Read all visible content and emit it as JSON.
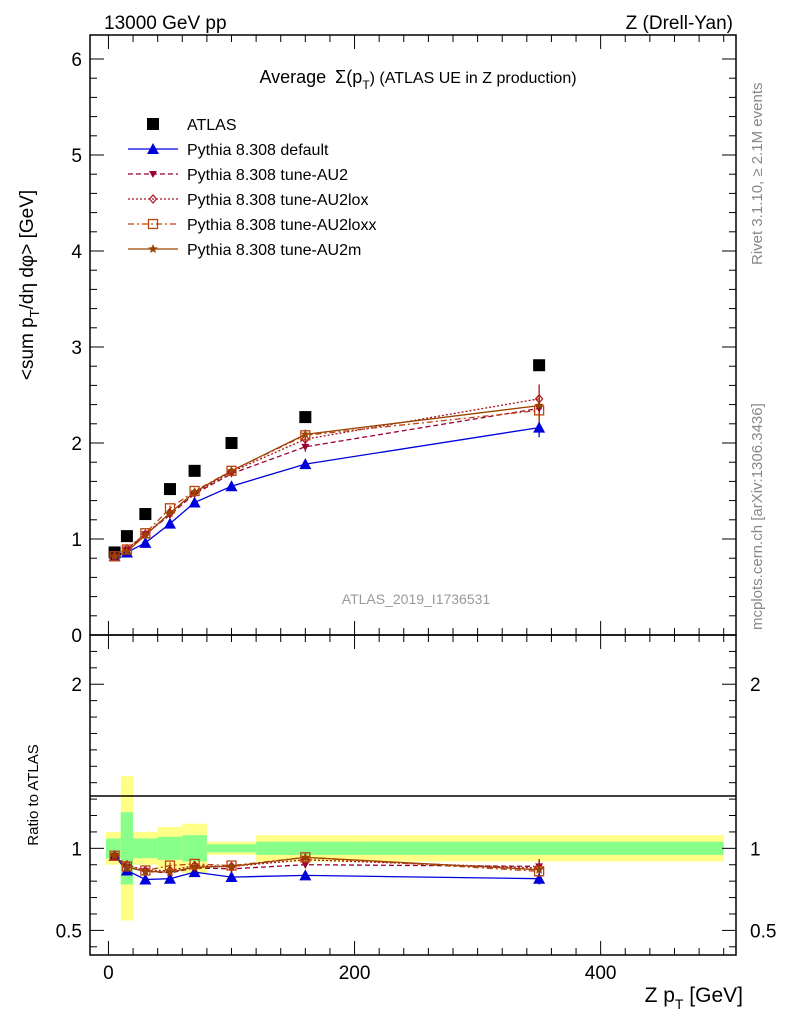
{
  "header": {
    "left": "13000 GeV pp",
    "right": "Z (Drell-Yan)"
  },
  "side_labels": {
    "rivet": "Rivet 3.1.10, ≥ 2.1M events",
    "mcplots": "mcplots.cern.ch [arXiv:1306.3436]"
  },
  "colors": {
    "atlas": "#000000",
    "default": "#0000dd",
    "au2": "#990033",
    "au2lox": "#aa1122",
    "au2loxx": "#bb4411",
    "au2m": "#994400",
    "band_inner": "#88ff88",
    "band_outer": "#ffff88"
  },
  "chart_data": [
    {
      "type": "line",
      "panel": "main",
      "title_prefix": "Average",
      "title_sym": "Σ(p",
      "title_sub": "T",
      "title_suffix": ") (ATLAS UE in Z production)",
      "ylabel": "<sum p_T/dη dφ> [GeV]",
      "ylabel_parts": [
        "<sum p",
        "T",
        "/dη dφ> [GeV]"
      ],
      "analysis_label": "ATLAS_2019_I1736531",
      "ylim": [
        0,
        6.25
      ],
      "xlim": [
        -15,
        510
      ],
      "yticks": [
        0,
        1,
        2,
        3,
        4,
        5,
        6
      ],
      "x": [
        5,
        15,
        30,
        50,
        70,
        100,
        160,
        350
      ],
      "series": [
        {
          "name": "ATLAS",
          "key": "atlas",
          "marker": "square",
          "line": "none",
          "values": [
            0.86,
            1.03,
            1.26,
            1.52,
            1.71,
            2.0,
            2.27,
            2.81
          ]
        },
        {
          "name": "Pythia 8.308 default",
          "key": "default",
          "marker": "triangle",
          "line": "solid",
          "values": [
            0.82,
            0.86,
            0.96,
            1.16,
            1.38,
            1.55,
            1.78,
            2.16
          ],
          "err": [
            0.02,
            0.02,
            0.02,
            0.03,
            0.03,
            0.03,
            0.05,
            0.1
          ]
        },
        {
          "name": "Pythia 8.308 tune-AU2",
          "key": "au2",
          "marker": "tri-down",
          "line": "dashed",
          "values": [
            0.82,
            0.89,
            1.05,
            1.25,
            1.47,
            1.68,
            1.96,
            2.36
          ],
          "err": [
            0.02,
            0.02,
            0.02,
            0.03,
            0.03,
            0.03,
            0.05,
            0.12
          ]
        },
        {
          "name": "Pythia 8.308 tune-AU2lox",
          "key": "au2lox",
          "marker": "diamond",
          "line": "dotted",
          "values": [
            0.82,
            0.9,
            1.05,
            1.27,
            1.48,
            1.7,
            2.04,
            2.46
          ],
          "err": [
            0.02,
            0.02,
            0.02,
            0.03,
            0.03,
            0.03,
            0.05,
            0.15
          ]
        },
        {
          "name": "Pythia 8.308 tune-AU2loxx",
          "key": "au2loxx",
          "marker": "square-open",
          "line": "dashdot",
          "values": [
            0.82,
            0.89,
            1.06,
            1.32,
            1.5,
            1.71,
            2.08,
            2.34
          ],
          "err": [
            0.02,
            0.02,
            0.02,
            0.03,
            0.03,
            0.03,
            0.05,
            0.12
          ]
        },
        {
          "name": "Pythia 8.308 tune-AU2m",
          "key": "au2m",
          "marker": "star",
          "line": "solid",
          "values": [
            0.82,
            0.87,
            1.04,
            1.27,
            1.49,
            1.71,
            2.09,
            2.39
          ],
          "err": [
            0.02,
            0.02,
            0.02,
            0.03,
            0.03,
            0.03,
            0.05,
            0.12
          ]
        }
      ]
    },
    {
      "type": "line",
      "panel": "ratio",
      "ylabel": "Ratio to ATLAS",
      "xlabel_parts": [
        "Z p",
        "T",
        " [GeV]"
      ],
      "ylim": [
        0.35,
        2.3
      ],
      "xlim": [
        -15,
        510
      ],
      "yticks": [
        0.5,
        1,
        2
      ],
      "ytick_labels": [
        "0.5",
        "1",
        "2"
      ],
      "xticks": [
        0,
        200,
        400
      ],
      "xtick_labels": [
        "0",
        "200",
        "400"
      ],
      "band": {
        "edges": [
          -2,
          10,
          20,
          40,
          60,
          80,
          120,
          200,
          500
        ],
        "inner": [
          0.06,
          0.22,
          0.06,
          0.07,
          0.08,
          0.025,
          0.04,
          0.04
        ],
        "outer": [
          0.1,
          0.44,
          0.1,
          0.13,
          0.15,
          0.04,
          0.08,
          0.08
        ]
      },
      "x": [
        5,
        15,
        30,
        50,
        70,
        100,
        160,
        350
      ],
      "series": [
        {
          "name": "Pythia 8.308 default",
          "key": "default",
          "values": [
            0.955,
            0.865,
            0.81,
            0.815,
            0.855,
            0.825,
            0.835,
            0.815
          ]
        },
        {
          "name": "Pythia 8.308 tune-AU2",
          "key": "au2",
          "values": [
            0.955,
            0.885,
            0.86,
            0.85,
            0.88,
            0.875,
            0.9,
            0.89
          ]
        },
        {
          "name": "Pythia 8.308 tune-AU2lox",
          "key": "au2lox",
          "values": [
            0.955,
            0.9,
            0.865,
            0.865,
            0.895,
            0.89,
            0.93,
            0.88
          ]
        },
        {
          "name": "Pythia 8.308 tune-AU2loxx",
          "key": "au2loxx",
          "values": [
            0.955,
            0.89,
            0.865,
            0.895,
            0.905,
            0.895,
            0.945,
            0.86
          ]
        },
        {
          "name": "Pythia 8.308 tune-AU2m",
          "key": "au2m",
          "values": [
            0.955,
            0.885,
            0.86,
            0.855,
            0.885,
            0.89,
            0.945,
            0.87
          ]
        }
      ]
    }
  ]
}
